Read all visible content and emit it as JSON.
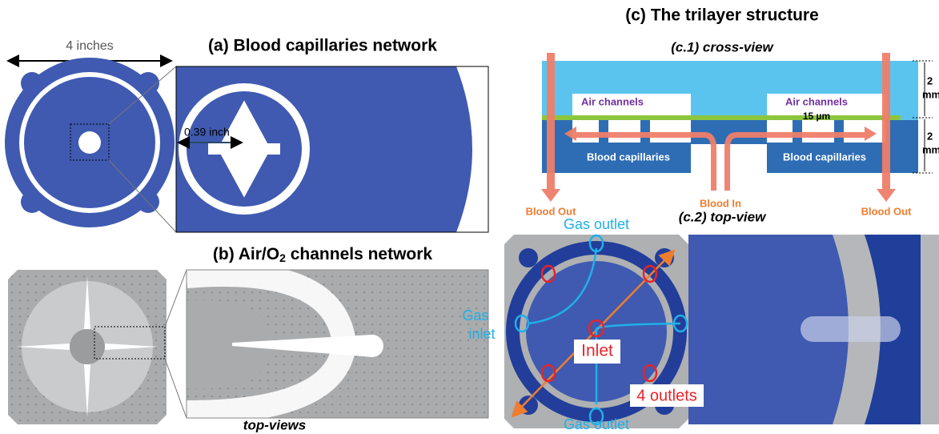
{
  "panel_a": {
    "width_label": "4 inches",
    "title": "(a) Blood capillaries network",
    "zoom_label": "0.39 inch"
  },
  "panel_b": {
    "title_prefix": "(b) Air/O",
    "title_subscript": "2",
    "title_suffix": " channels network",
    "caption": "top-views"
  },
  "panel_c": {
    "title": "(c)  The trilayer structure",
    "cross_view": {
      "title": "(c.1) cross-view",
      "air_left": "Air channels",
      "air_right": "Air channels",
      "gap": "15 µm",
      "cap_left": "Blood capillaries",
      "cap_right": "Blood capillaries",
      "out_left": "Blood Out",
      "in": "Blood In",
      "out_right": "Blood Out",
      "scale_top": [
        "2",
        "mm"
      ],
      "scale_bottom": [
        "2",
        "mm"
      ]
    },
    "top_view": {
      "title": "(c.2) top-view",
      "gas_outlet_top": "Gas outlet",
      "gas_inlet": [
        "Gas",
        "inlet"
      ],
      "inlet": "Inlet",
      "outlets": "4 outlets",
      "gas_outlet_bottom": "Gas outlet"
    }
  }
}
